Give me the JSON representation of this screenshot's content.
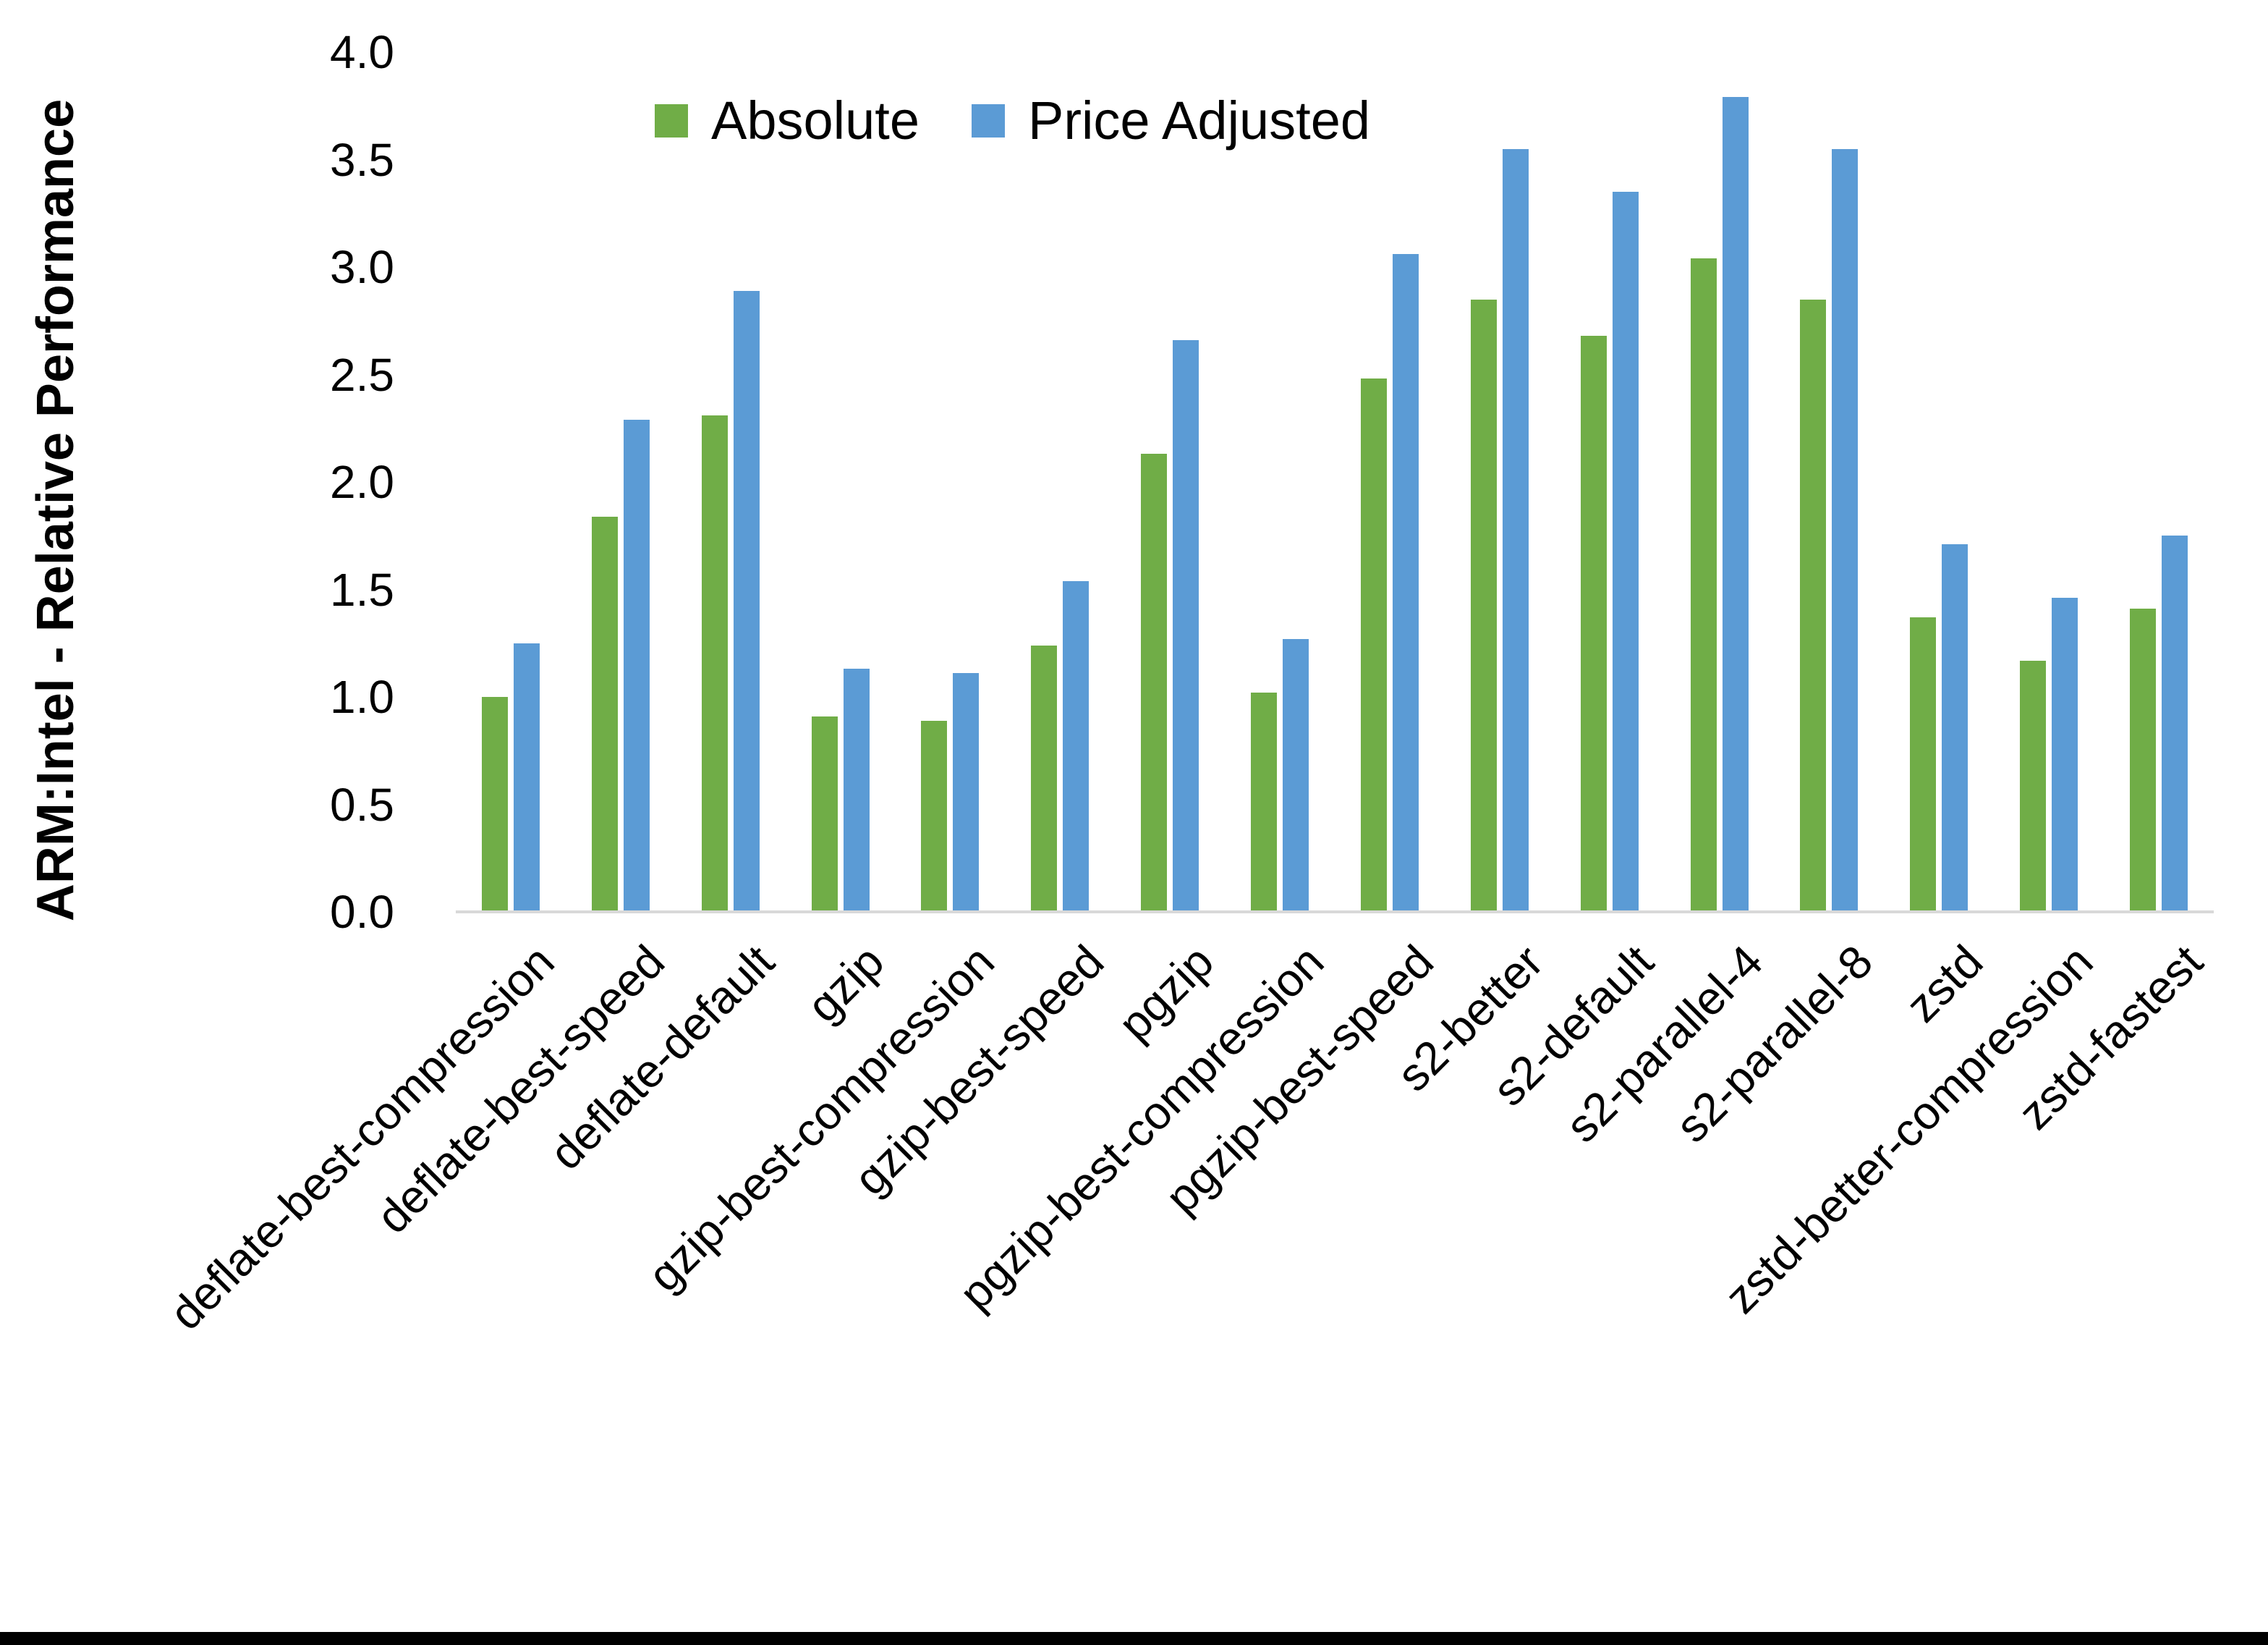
{
  "chart_data": {
    "type": "bar",
    "title": "",
    "xlabel": "",
    "ylabel": "ARM:Intel - Relative Performance",
    "ylim": [
      0.0,
      4.0
    ],
    "ytick_step": 0.5,
    "ytick_labels": [
      "0.0",
      "0.5",
      "1.0",
      "1.5",
      "2.0",
      "2.5",
      "3.0",
      "3.5",
      "4.0"
    ],
    "grid": false,
    "legend_position": "top-center",
    "categories": [
      "deflate-best-compression",
      "deflate-best-speed",
      "deflate-default",
      "gzip",
      "gzip-best-compression",
      "gzip-best-speed",
      "pgzip",
      "pgzip-best-compression",
      "pgzip-best-speed",
      "s2-better",
      "s2-default",
      "s2-parallel-4",
      "s2-parallel-8",
      "zstd",
      "zstd-better-compression",
      "zstd-fastest"
    ],
    "series": [
      {
        "name": "Absolute",
        "color": "#70AD47",
        "values": [
          1.0,
          1.84,
          2.31,
          0.91,
          0.89,
          1.24,
          2.13,
          1.02,
          2.48,
          2.85,
          2.68,
          3.04,
          2.85,
          1.37,
          1.17,
          1.41
        ]
      },
      {
        "name": "Price Adjusted",
        "color": "#5B9BD5",
        "values": [
          1.25,
          2.29,
          2.89,
          1.13,
          1.11,
          1.54,
          2.66,
          1.27,
          3.06,
          3.55,
          3.35,
          3.79,
          3.55,
          1.71,
          1.46,
          1.75
        ]
      }
    ],
    "axis_line_color": "#D9D9D9",
    "text_color": "#000000"
  }
}
